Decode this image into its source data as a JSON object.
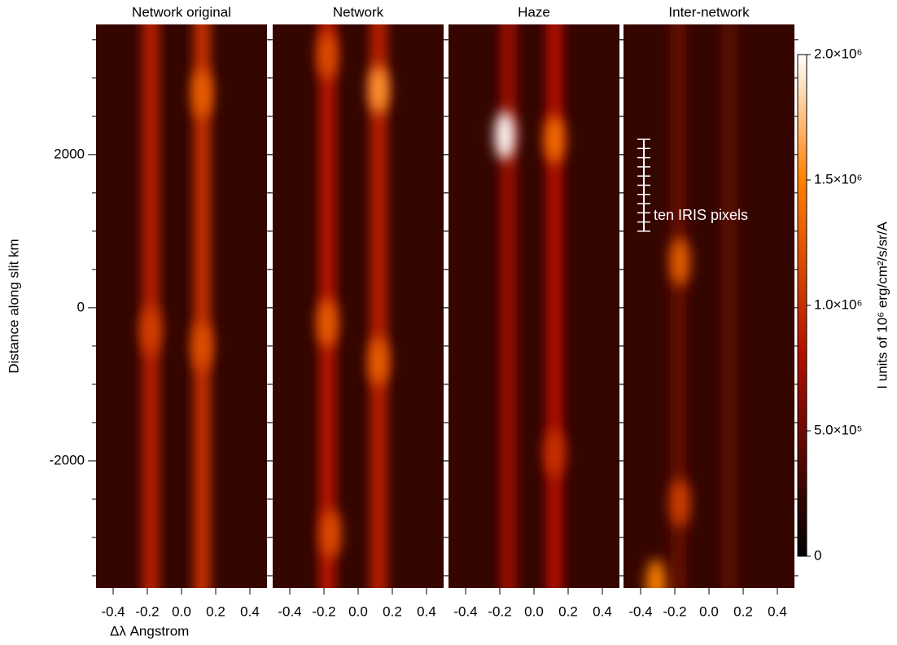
{
  "chart_data": [
    {
      "type": "heatmap",
      "title": "Network original",
      "xlabel": "Δλ  Angstrom",
      "ylabel": "Distance along slit km",
      "xlim": [
        -0.5,
        0.5
      ],
      "xticks": [
        -0.4,
        -0.2,
        {
          "value": 0,
          "label": "0.0"
        },
        0.2,
        0.4
      ],
      "ylim": [
        -3660,
        3700
      ],
      "yticks": [
        -2000,
        0,
        2000
      ],
      "yminor": [
        -3500,
        -3000,
        -2500,
        -1500,
        -1000,
        -500,
        500,
        1000,
        1500,
        2500,
        3000,
        3500
      ],
      "streaks": [
        {
          "x": -0.18,
          "intensity": 900000
        },
        {
          "x": 0.12,
          "intensity": 1000000
        }
      ],
      "blobs": [
        {
          "x": 0.12,
          "y": 2800,
          "intensity": 1300000
        },
        {
          "x": -0.18,
          "y": -300,
          "intensity": 1100000
        },
        {
          "x": 0.12,
          "y": -500,
          "intensity": 1200000
        }
      ]
    },
    {
      "type": "heatmap",
      "title": "Network",
      "xlim": [
        -0.5,
        0.5
      ],
      "xticks": [
        -0.4,
        -0.2,
        {
          "value": 0,
          "label": "0.0"
        },
        0.2,
        0.4
      ],
      "streaks": [
        {
          "x": -0.18,
          "intensity": 850000
        },
        {
          "x": 0.12,
          "intensity": 900000
        }
      ],
      "blobs": [
        {
          "x": 0.12,
          "y": 2850,
          "intensity": 1600000
        },
        {
          "x": -0.18,
          "y": -200,
          "intensity": 1300000
        },
        {
          "x": 0.12,
          "y": -700,
          "intensity": 1300000
        },
        {
          "x": -0.18,
          "y": 3300,
          "intensity": 1200000
        },
        {
          "x": -0.16,
          "y": -2950,
          "intensity": 1200000
        }
      ]
    },
    {
      "type": "heatmap",
      "title": "Haze",
      "xlim": [
        -0.5,
        0.5
      ],
      "xticks": [
        -0.4,
        -0.2,
        {
          "value": 0,
          "label": "0.0"
        },
        0.2,
        0.4
      ],
      "streaks": [
        {
          "x": -0.15,
          "intensity": 700000
        },
        {
          "x": 0.12,
          "intensity": 800000
        }
      ],
      "blobs": [
        {
          "x": -0.17,
          "y": 2250,
          "intensity": 2000000
        },
        {
          "x": 0.12,
          "y": 2200,
          "intensity": 1400000
        },
        {
          "x": 0.12,
          "y": -1900,
          "intensity": 1000000
        }
      ]
    },
    {
      "type": "heatmap",
      "title": "Inter-network",
      "annotation": "ten IRIS pixels",
      "xlim": [
        -0.5,
        0.5
      ],
      "xticks": [
        -0.4,
        -0.2,
        {
          "value": 0,
          "label": "0.0"
        },
        0.2,
        0.4
      ],
      "streaks": [
        {
          "x": -0.18,
          "intensity": 450000
        },
        {
          "x": 0.12,
          "intensity": 400000
        }
      ],
      "blobs": [
        {
          "x": -0.17,
          "y": 600,
          "intensity": 1300000
        },
        {
          "x": -0.17,
          "y": -2550,
          "intensity": 1100000
        },
        {
          "x": -0.31,
          "y": -3600,
          "intensity": 1500000
        }
      ]
    },
    {
      "type": "colorbar",
      "label": "I units of 10⁶ erg/cm²/s/sr/A",
      "lim": [
        0,
        2000000
      ],
      "ticks": [
        0,
        {
          "value": 500000,
          "label": "5.0×10⁵"
        },
        {
          "value": 1000000,
          "label": "1.0×10⁶"
        },
        {
          "value": 1500000,
          "label": "1.5×10⁶"
        },
        {
          "value": 2000000,
          "label": "2.0×10⁶"
        }
      ]
    }
  ]
}
